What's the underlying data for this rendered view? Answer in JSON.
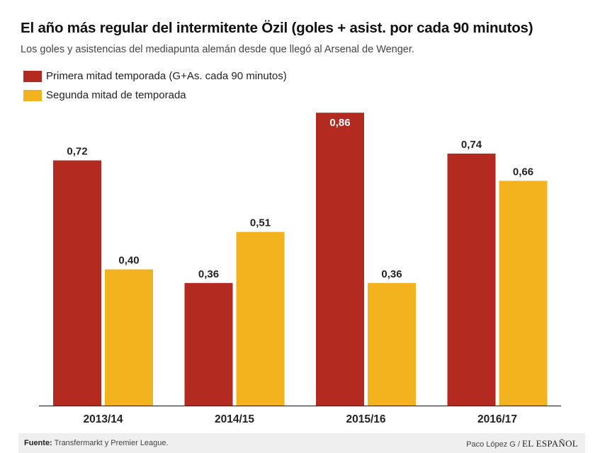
{
  "title": "El año más regular del intermitente Özil (goles + asist. por cada 90 minutos)",
  "subtitle": "Los goles y asistencias del mediapunta alemán desde que llegó al Arsenal de Wenger.",
  "legend": [
    {
      "label": "Primera mitad temporada (G+As. cada 90 minutos)",
      "color": "#b22a20"
    },
    {
      "label": "Segunda mitad de temporada",
      "color": "#f2b31e"
    }
  ],
  "chart_data": {
    "type": "bar",
    "title": "El año más regular del intermitente Özil (goles + asist. por cada 90 minutos)",
    "xlabel": "",
    "ylabel": "",
    "ylim": [
      0,
      0.9
    ],
    "grid": false,
    "categories": [
      "2013/14",
      "2014/15",
      "2015/16",
      "2016/17"
    ],
    "series": [
      {
        "name": "Primera mitad temporada (G+As. cada 90 minutos)",
        "color": "#b22a20",
        "label_color": "#222222",
        "values": [
          0.72,
          0.36,
          0.86,
          0.74
        ],
        "labels": [
          "0,72",
          "0,36",
          "0,86",
          "0,74"
        ]
      },
      {
        "name": "Segunda mitad de temporada",
        "color": "#f2b31e",
        "label_color": "#222222",
        "values": [
          0.4,
          0.51,
          0.36,
          0.66
        ],
        "labels": [
          "0,40",
          "0,51",
          "0,36",
          "0,66"
        ]
      }
    ],
    "inside_label_color": "#ffffff"
  },
  "footer": {
    "source_label": "Fuente:",
    "source_text": "Transfermarkt y Premier League.",
    "author": "Paco López G",
    "separator": "/",
    "brand": "EL ESPAÑOL"
  }
}
